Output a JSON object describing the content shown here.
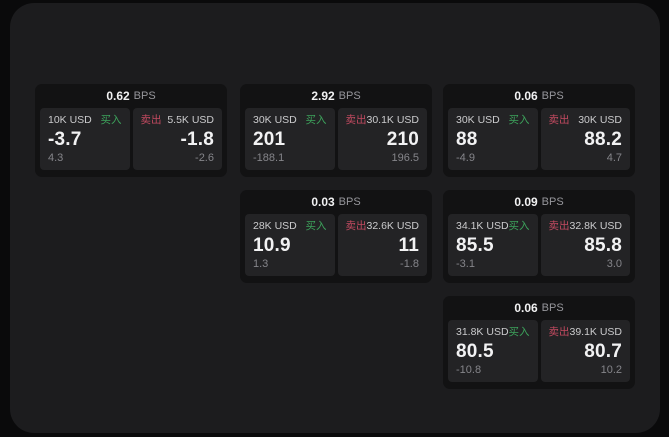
{
  "page": {
    "background": "#0a0a0b",
    "surface_background": "#1c1c1e",
    "card_background": "#121213",
    "tile_background": "#232325"
  },
  "labels": {
    "buy": "买入",
    "sell": "卖出",
    "bps_unit": "BPS"
  },
  "colors": {
    "buy": "#3da35c",
    "sell": "#c24a60",
    "value_text": "#f2f2f3",
    "muted_text": "#85858a",
    "amount_text": "#cbcbcd"
  },
  "cards": [
    {
      "bps": "0.62",
      "col": 1,
      "row": 1,
      "buy": {
        "amount": "10K USD",
        "price": "-3.7",
        "sub": "4.3"
      },
      "sell": {
        "amount": "5.5K USD",
        "price": "-1.8",
        "sub": "-2.6"
      }
    },
    {
      "bps": "2.92",
      "col": 2,
      "row": 1,
      "buy": {
        "amount": "30K USD",
        "price": "201",
        "sub": "-188.1"
      },
      "sell": {
        "amount": "30.1K USD",
        "price": "210",
        "sub": "196.5"
      }
    },
    {
      "bps": "0.06",
      "col": 3,
      "row": 1,
      "buy": {
        "amount": "30K USD",
        "price": "88",
        "sub": "-4.9"
      },
      "sell": {
        "amount": "30K USD",
        "price": "88.2",
        "sub": "4.7"
      }
    },
    {
      "bps": "0.03",
      "col": 2,
      "row": 2,
      "buy": {
        "amount": "28K USD",
        "price": "10.9",
        "sub": "1.3"
      },
      "sell": {
        "amount": "32.6K USD",
        "price": "11",
        "sub": "-1.8"
      }
    },
    {
      "bps": "0.09",
      "col": 3,
      "row": 2,
      "buy": {
        "amount": "34.1K USD",
        "price": "85.5",
        "sub": "-3.1"
      },
      "sell": {
        "amount": "32.8K USD",
        "price": "85.8",
        "sub": "3.0"
      }
    },
    {
      "bps": "0.06",
      "col": 3,
      "row": 3,
      "buy": {
        "amount": "31.8K USD",
        "price": "80.5",
        "sub": "-10.8"
      },
      "sell": {
        "amount": "39.1K USD",
        "price": "80.7",
        "sub": "10.2"
      }
    }
  ]
}
